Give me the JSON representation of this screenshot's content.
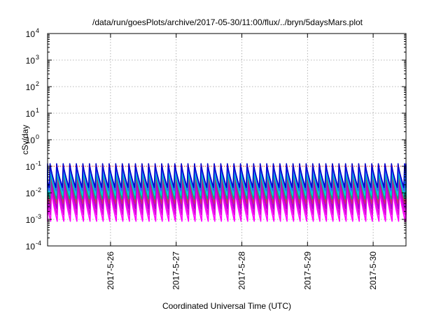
{
  "chart_data": {
    "type": "line",
    "title": "/data/run/goesPlots/archive/2017-05-30/11:00/flux/../bryn/5daysMars.plot",
    "xlabel": "Coordinated Universal Time (UTC)",
    "ylabel": "cSv/day",
    "yscale": "log",
    "ylim": [
      0.0001,
      10000
    ],
    "y_ticks": [
      {
        "base": "10",
        "exp": "-4"
      },
      {
        "base": "10",
        "exp": "-3"
      },
      {
        "base": "10",
        "exp": "-2"
      },
      {
        "base": "10",
        "exp": "-1"
      },
      {
        "base": "10",
        "exp": "0"
      },
      {
        "base": "10",
        "exp": "1"
      },
      {
        "base": "10",
        "exp": "2"
      },
      {
        "base": "10",
        "exp": "3"
      },
      {
        "base": "10",
        "exp": "4"
      }
    ],
    "xlim": [
      "2017-05-25 01:00",
      "2017-05-30 12:00"
    ],
    "x_ticks": [
      "2017-5-26",
      "2017-5-27",
      "2017-5-28",
      "2017-5-29",
      "2017-5-30"
    ],
    "grid": true,
    "legend": "none",
    "sawtooth_period_hours": 2.4,
    "series": [
      {
        "color": "#ff00ff",
        "peak": 0.012,
        "trough": 0.00085
      },
      {
        "color": "#dd00dd",
        "peak": 0.02,
        "trough": 0.0015
      },
      {
        "color": "#aa00cc",
        "peak": 0.035,
        "trough": 0.0025
      },
      {
        "color": "#cc3366",
        "peak": 0.05,
        "trough": 0.004
      },
      {
        "color": "#00aa88",
        "peak": 0.065,
        "trough": 0.006
      },
      {
        "color": "#00ccdd",
        "peak": 0.08,
        "trough": 0.008
      },
      {
        "color": "#3355ff",
        "peak": 0.105,
        "trough": 0.012
      },
      {
        "color": "#0000cc",
        "peak": 0.125,
        "trough": 0.016
      }
    ],
    "reference_lines": [
      {
        "color": "#ff0000",
        "y": 0.1
      }
    ]
  }
}
